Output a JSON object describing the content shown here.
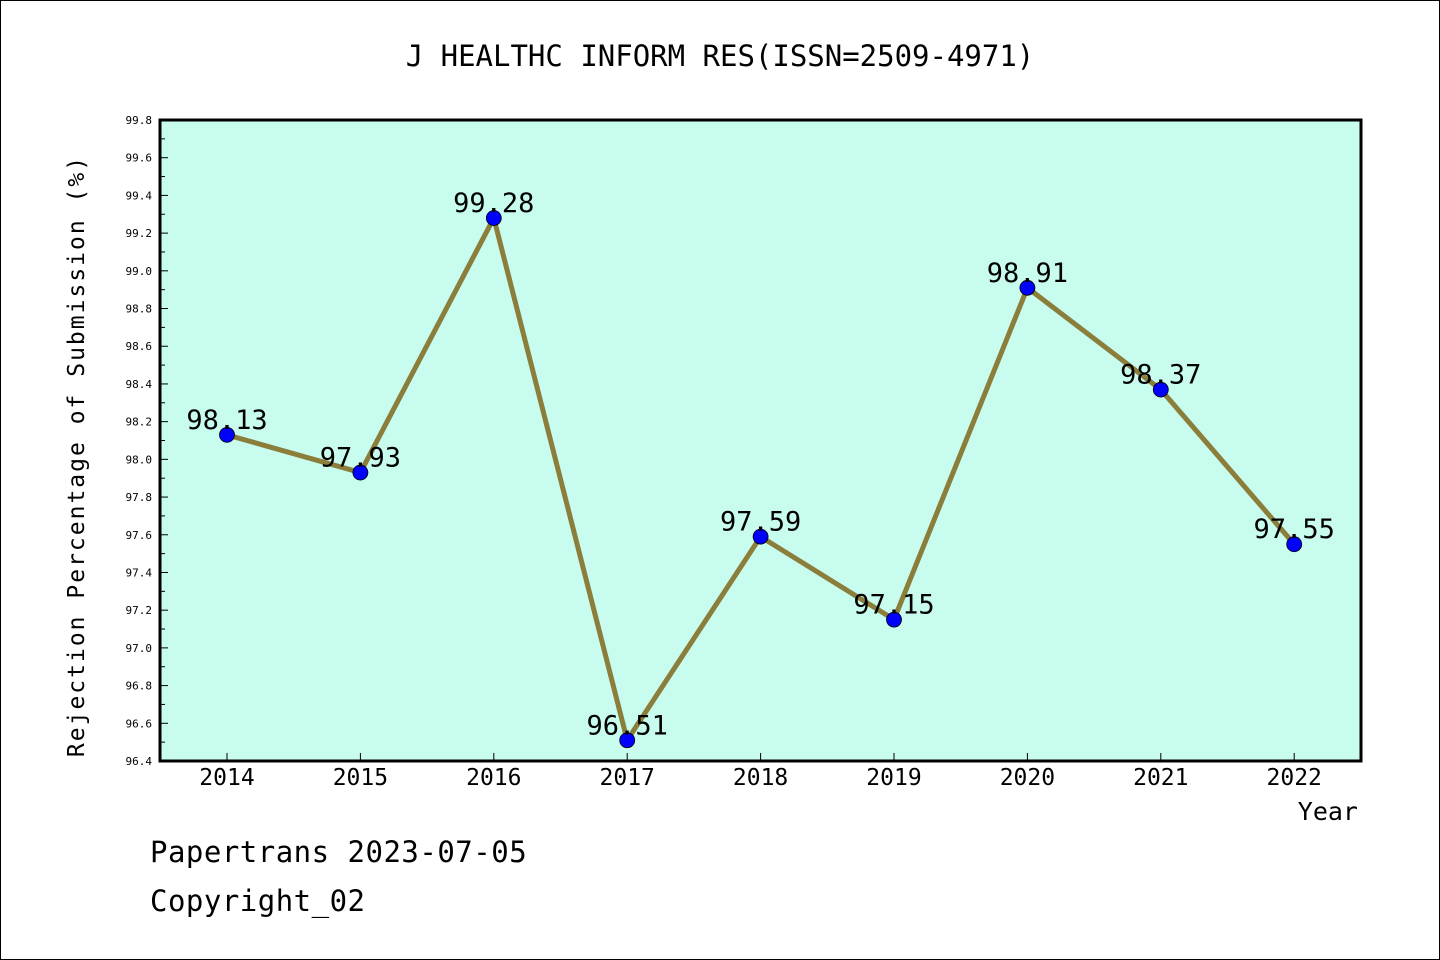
{
  "chart_data": {
    "type": "line",
    "title": "J HEALTHC INFORM RES(ISSN=2509-4971)",
    "xlabel": "Year",
    "ylabel": "Rejection Percentage of Submission (%)",
    "categories": [
      "2014",
      "2015",
      "2016",
      "2017",
      "2018",
      "2019",
      "2020",
      "2021",
      "2022"
    ],
    "series": [
      {
        "values": [
          98.13,
          97.93,
          99.28,
          96.51,
          97.59,
          97.15,
          98.91,
          98.37,
          97.55
        ],
        "data_labels": [
          "98.13",
          "97.93",
          "99.28",
          "96.51",
          "97.59",
          "97.15",
          "98.91",
          "98.37",
          "97.55"
        ]
      }
    ],
    "ylim": [
      96.4,
      99.8
    ],
    "y_ticks": [
      "96.4",
      "96.6",
      "96.8",
      "97.0",
      "97.2",
      "97.4",
      "97.6",
      "97.8",
      "98.0",
      "98.2",
      "98.4",
      "98.6",
      "98.8",
      "99.0",
      "99.2",
      "99.4",
      "99.6",
      "99.8"
    ],
    "grid": false,
    "colors": {
      "plot_background": "#c8fcee",
      "line": "#8b7d3a",
      "marker": "#0000ff",
      "axis": "#000000"
    }
  },
  "footer": {
    "line1": "Papertrans 2023-07-05",
    "line2": "Copyright_02"
  }
}
